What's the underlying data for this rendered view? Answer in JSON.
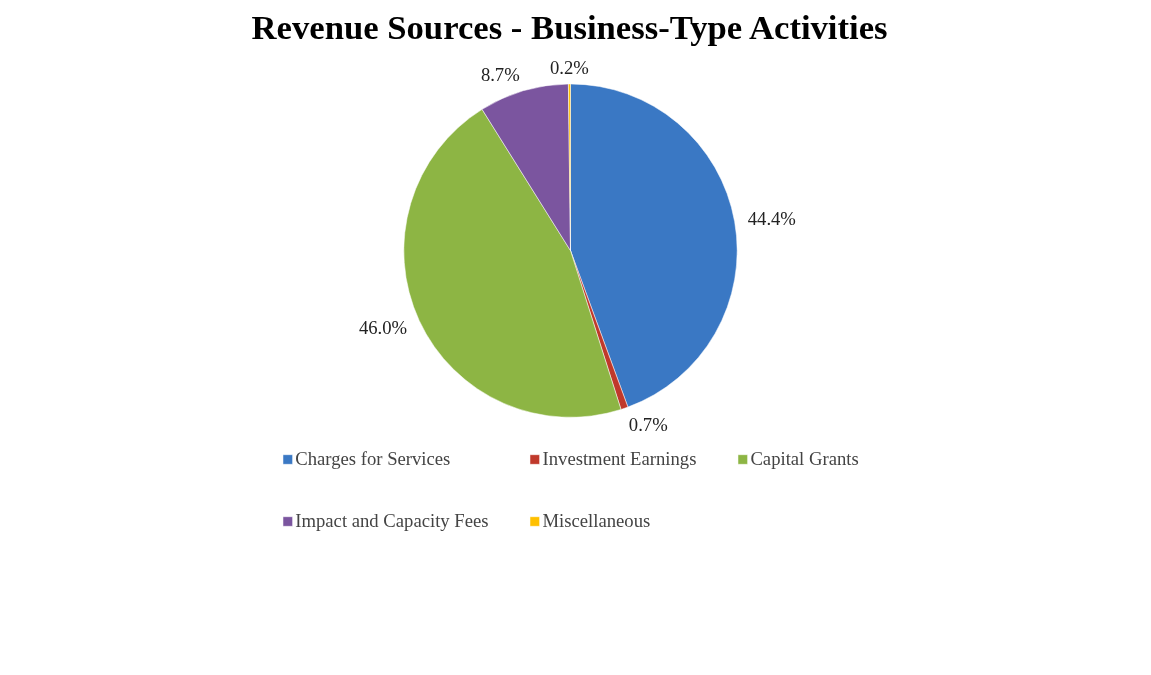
{
  "chart_data": {
    "type": "pie",
    "title": "Revenue Sources - Business-Type Activities",
    "categories": [
      "Charges for Services",
      "Investment Earnings",
      "Capital Grants",
      "Impact and Capacity Fees",
      "Miscellaneous"
    ],
    "values": [
      44.4,
      0.7,
      46.0,
      8.7,
      0.2
    ],
    "colors": [
      "#3a78c4",
      "#c0392b",
      "#8db544",
      "#7b559f",
      "#ffc000"
    ],
    "value_labels": [
      "44.4%",
      "0.7%",
      "46.0%",
      "8.7%",
      "0.2%"
    ],
    "legend": "bottom"
  }
}
